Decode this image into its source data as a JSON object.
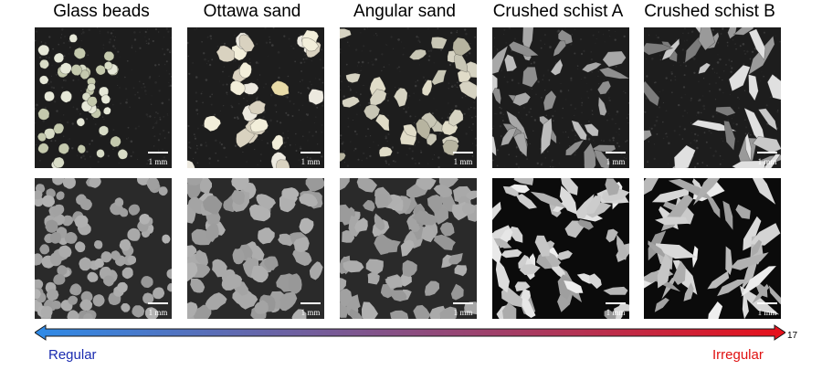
{
  "columns": [
    {
      "title": "Glass beads"
    },
    {
      "title": "Ottawa sand"
    },
    {
      "title": "Angular sand"
    },
    {
      "title": "Crushed schist A"
    },
    {
      "title": "Crushed schist B"
    }
  ],
  "scale_bar_label": "1 mm",
  "scale": {
    "left_label": "Regular",
    "right_label": "Irregular",
    "right_value": "17",
    "left_color": "#2E8BE8",
    "right_color": "#E8101A",
    "left_label_color": "#1A2BB0",
    "right_label_color": "#E01010"
  }
}
